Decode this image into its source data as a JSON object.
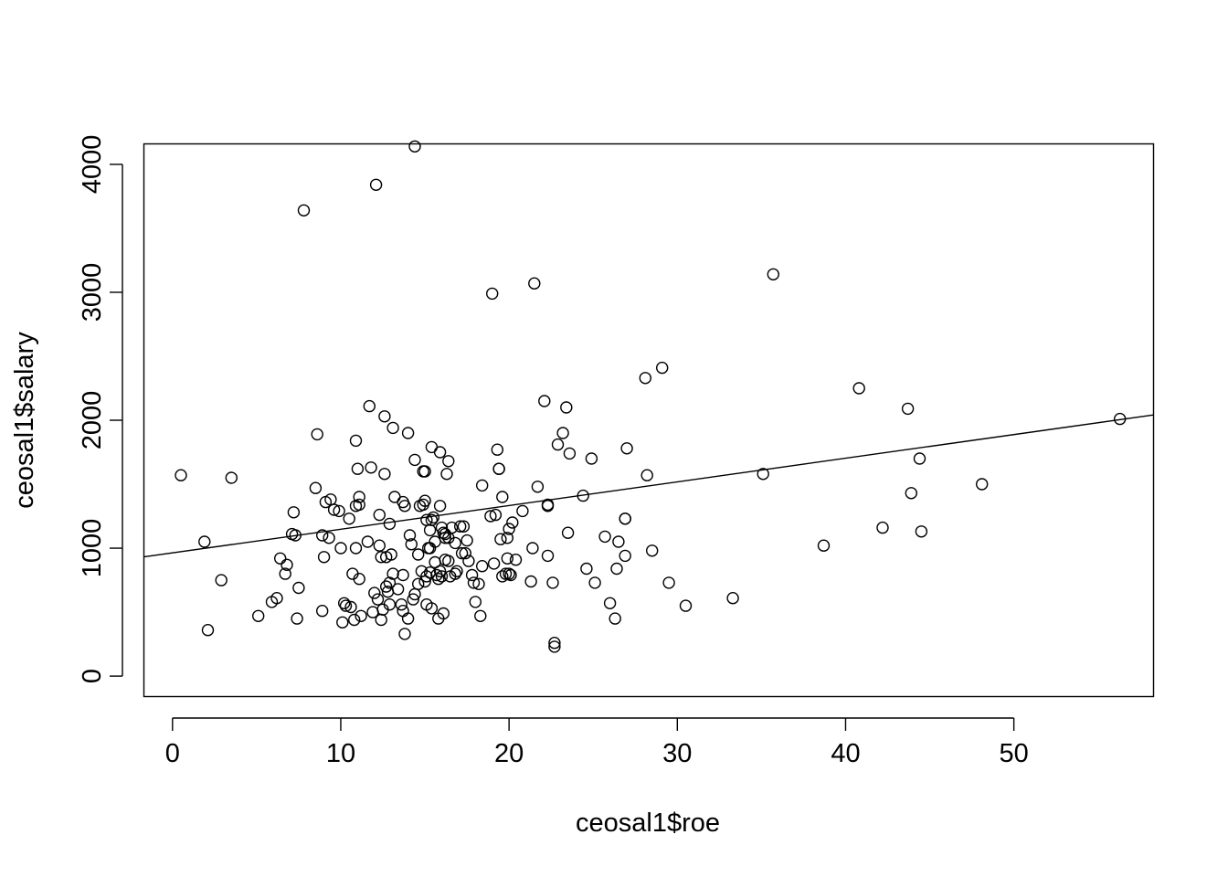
{
  "chart_data": {
    "type": "scatter",
    "title": "",
    "xlabel": "ceosal1$roe",
    "ylabel": "ceosal1$salary",
    "xlim": [
      -1.7,
      58.3
    ],
    "ylim": [
      -160,
      4160
    ],
    "x_ticks": [
      0,
      10,
      20,
      30,
      40,
      50
    ],
    "y_ticks": [
      0,
      1000,
      2000,
      3000,
      4000
    ],
    "x_tick_labels": [
      "0",
      "10",
      "20",
      "30",
      "40",
      "50"
    ],
    "y_tick_labels": [
      "0",
      "1000",
      "2000",
      "3000",
      "4000"
    ],
    "grid": false,
    "legend": "none",
    "marker": "open-circle",
    "fit_line": {
      "intercept": 963,
      "slope": 18.5
    },
    "points": [
      [
        0.5,
        1570
      ],
      [
        1.9,
        1050
      ],
      [
        2.1,
        360
      ],
      [
        2.9,
        750
      ],
      [
        3.5,
        1550
      ],
      [
        5.1,
        470
      ],
      [
        5.9,
        580
      ],
      [
        6.2,
        610
      ],
      [
        6.4,
        920
      ],
      [
        6.7,
        800
      ],
      [
        6.8,
        870
      ],
      [
        7.1,
        1110
      ],
      [
        7.2,
        1280
      ],
      [
        7.3,
        1100
      ],
      [
        7.4,
        450
      ],
      [
        7.5,
        690
      ],
      [
        7.8,
        3640
      ],
      [
        8.5,
        1470
      ],
      [
        8.6,
        1890
      ],
      [
        8.9,
        510
      ],
      [
        8.9,
        1100
      ],
      [
        9.0,
        930
      ],
      [
        9.1,
        1360
      ],
      [
        9.3,
        1080
      ],
      [
        9.4,
        1380
      ],
      [
        9.6,
        1300
      ],
      [
        9.9,
        1290
      ],
      [
        10.0,
        1000
      ],
      [
        10.1,
        420
      ],
      [
        10.2,
        570
      ],
      [
        10.3,
        550
      ],
      [
        10.5,
        1230
      ],
      [
        10.6,
        540
      ],
      [
        10.7,
        800
      ],
      [
        10.8,
        440
      ],
      [
        10.9,
        1840
      ],
      [
        10.9,
        1330
      ],
      [
        10.9,
        1000
      ],
      [
        11.0,
        1620
      ],
      [
        11.1,
        1400
      ],
      [
        11.1,
        1340
      ],
      [
        11.1,
        760
      ],
      [
        11.2,
        470
      ],
      [
        11.6,
        1050
      ],
      [
        11.7,
        2110
      ],
      [
        11.8,
        1630
      ],
      [
        11.9,
        500
      ],
      [
        12.0,
        650
      ],
      [
        12.1,
        3840
      ],
      [
        12.2,
        600
      ],
      [
        12.3,
        1260
      ],
      [
        12.3,
        1020
      ],
      [
        12.4,
        930
      ],
      [
        12.4,
        440
      ],
      [
        12.5,
        520
      ],
      [
        12.6,
        2030
      ],
      [
        12.6,
        1580
      ],
      [
        12.7,
        930
      ],
      [
        12.7,
        700
      ],
      [
        12.8,
        660
      ],
      [
        12.9,
        1190
      ],
      [
        12.9,
        560
      ],
      [
        12.9,
        730
      ],
      [
        13.0,
        950
      ],
      [
        13.1,
        1940
      ],
      [
        13.1,
        800
      ],
      [
        13.2,
        1400
      ],
      [
        13.4,
        680
      ],
      [
        13.6,
        560
      ],
      [
        13.7,
        1360
      ],
      [
        13.7,
        790
      ],
      [
        13.7,
        510
      ],
      [
        13.8,
        330
      ],
      [
        13.8,
        1330
      ],
      [
        14.0,
        1900
      ],
      [
        14.0,
        450
      ],
      [
        14.1,
        1100
      ],
      [
        14.2,
        1030
      ],
      [
        14.3,
        600
      ],
      [
        14.4,
        4140
      ],
      [
        14.4,
        1690
      ],
      [
        14.4,
        640
      ],
      [
        14.6,
        950
      ],
      [
        14.6,
        720
      ],
      [
        14.7,
        1330
      ],
      [
        14.8,
        820
      ],
      [
        14.9,
        1600
      ],
      [
        14.9,
        1340
      ],
      [
        15.0,
        1600
      ],
      [
        15.0,
        1370
      ],
      [
        15.0,
        740
      ],
      [
        15.1,
        780
      ],
      [
        15.1,
        560
      ],
      [
        15.1,
        1220
      ],
      [
        15.2,
        1000
      ],
      [
        15.3,
        1000
      ],
      [
        15.3,
        1140
      ],
      [
        15.3,
        810
      ],
      [
        15.4,
        1790
      ],
      [
        15.4,
        1220
      ],
      [
        15.4,
        530
      ],
      [
        15.5,
        1240
      ],
      [
        15.6,
        1050
      ],
      [
        15.6,
        890
      ],
      [
        15.7,
        790
      ],
      [
        15.8,
        760
      ],
      [
        15.8,
        450
      ],
      [
        15.9,
        1750
      ],
      [
        15.9,
        1330
      ],
      [
        15.9,
        820
      ],
      [
        16.0,
        1160
      ],
      [
        16.0,
        780
      ],
      [
        16.1,
        1120
      ],
      [
        16.1,
        490
      ],
      [
        16.2,
        1110
      ],
      [
        16.2,
        1080
      ],
      [
        16.2,
        910
      ],
      [
        16.3,
        1580
      ],
      [
        16.4,
        1680
      ],
      [
        16.4,
        1080
      ],
      [
        16.4,
        900
      ],
      [
        16.5,
        780
      ],
      [
        16.6,
        1160
      ],
      [
        16.8,
        800
      ],
      [
        16.8,
        1040
      ],
      [
        16.9,
        820
      ],
      [
        17.1,
        1170
      ],
      [
        17.2,
        960
      ],
      [
        17.3,
        1170
      ],
      [
        17.4,
        960
      ],
      [
        17.5,
        1060
      ],
      [
        17.6,
        900
      ],
      [
        17.8,
        790
      ],
      [
        17.9,
        730
      ],
      [
        18.0,
        580
      ],
      [
        18.2,
        720
      ],
      [
        18.3,
        470
      ],
      [
        18.4,
        1490
      ],
      [
        18.4,
        860
      ],
      [
        18.9,
        1250
      ],
      [
        19.0,
        2990
      ],
      [
        19.1,
        880
      ],
      [
        19.2,
        1260
      ],
      [
        19.3,
        1770
      ],
      [
        19.4,
        1620
      ],
      [
        19.4,
        1620
      ],
      [
        19.5,
        1070
      ],
      [
        19.6,
        780
      ],
      [
        19.6,
        1400
      ],
      [
        19.8,
        800
      ],
      [
        19.9,
        920
      ],
      [
        19.9,
        1080
      ],
      [
        20.0,
        1150
      ],
      [
        20.0,
        800
      ],
      [
        20.1,
        790
      ],
      [
        20.2,
        1200
      ],
      [
        20.4,
        910
      ],
      [
        20.8,
        1290
      ],
      [
        21.3,
        740
      ],
      [
        21.4,
        1000
      ],
      [
        21.5,
        3070
      ],
      [
        21.7,
        1480
      ],
      [
        22.1,
        2150
      ],
      [
        22.3,
        1340
      ],
      [
        22.3,
        1330
      ],
      [
        22.3,
        940
      ],
      [
        22.6,
        730
      ],
      [
        22.7,
        260
      ],
      [
        22.7,
        230
      ],
      [
        22.9,
        1810
      ],
      [
        23.2,
        1900
      ],
      [
        23.4,
        2100
      ],
      [
        23.5,
        1120
      ],
      [
        23.6,
        1740
      ],
      [
        24.4,
        1410
      ],
      [
        24.6,
        840
      ],
      [
        24.9,
        1700
      ],
      [
        25.1,
        730
      ],
      [
        25.7,
        1090
      ],
      [
        26.0,
        570
      ],
      [
        26.3,
        450
      ],
      [
        26.4,
        840
      ],
      [
        26.5,
        1050
      ],
      [
        26.9,
        1230
      ],
      [
        26.9,
        1230
      ],
      [
        26.9,
        940
      ],
      [
        27.0,
        1780
      ],
      [
        28.1,
        2330
      ],
      [
        28.2,
        1570
      ],
      [
        28.5,
        980
      ],
      [
        29.1,
        2410
      ],
      [
        29.5,
        730
      ],
      [
        30.5,
        550
      ],
      [
        33.3,
        610
      ],
      [
        35.1,
        1580
      ],
      [
        35.7,
        3140
      ],
      [
        38.7,
        1020
      ],
      [
        40.8,
        2250
      ],
      [
        42.2,
        1160
      ],
      [
        43.7,
        2090
      ],
      [
        43.9,
        1430
      ],
      [
        44.4,
        1700
      ],
      [
        44.5,
        1130
      ],
      [
        48.1,
        1500
      ],
      [
        56.3,
        2010
      ]
    ]
  }
}
